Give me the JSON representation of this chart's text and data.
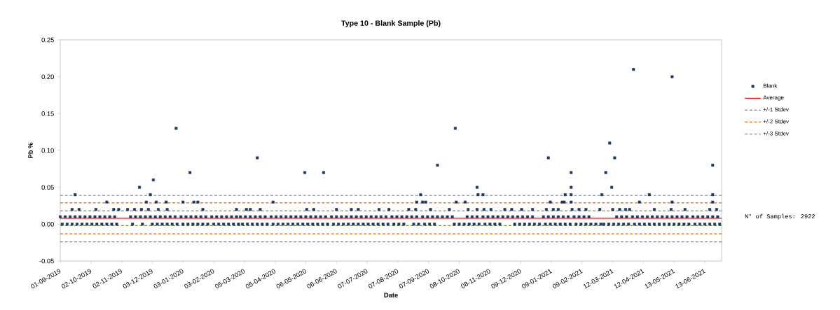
{
  "chart_data": {
    "type": "scatter",
    "title": "Type 10 - Blank Sample (Pb)",
    "xlabel": "Date",
    "ylabel": "Pb %",
    "xlim": [
      "2019-09-01",
      "2021-06-30"
    ],
    "ylim": [
      -0.05,
      0.25
    ],
    "xticks": [
      {
        "value": "2019-09-01",
        "label": "01-09-2019"
      },
      {
        "value": "2019-10-02",
        "label": "02-10-2019"
      },
      {
        "value": "2019-11-02",
        "label": "02-11-2019"
      },
      {
        "value": "2019-12-03",
        "label": "03-12-2019"
      },
      {
        "value": "2020-01-03",
        "label": "03-01-2020"
      },
      {
        "value": "2020-02-03",
        "label": "03-02-2020"
      },
      {
        "value": "2020-03-05",
        "label": "05-03-2020"
      },
      {
        "value": "2020-04-05",
        "label": "05-04-2020"
      },
      {
        "value": "2020-05-06",
        "label": "06-05-2020"
      },
      {
        "value": "2020-06-06",
        "label": "06-06-2020"
      },
      {
        "value": "2020-07-07",
        "label": "07-07-2020"
      },
      {
        "value": "2020-08-07",
        "label": "07-08-2020"
      },
      {
        "value": "2020-09-07",
        "label": "07-09-2020"
      },
      {
        "value": "2020-10-08",
        "label": "08-10-2020"
      },
      {
        "value": "2020-11-08",
        "label": "08-11-2020"
      },
      {
        "value": "2020-12-09",
        "label": "09-12-2020"
      },
      {
        "value": "2021-01-09",
        "label": "09-01-2021"
      },
      {
        "value": "2021-02-09",
        "label": "09-02-2021"
      },
      {
        "value": "2021-03-12",
        "label": "12-03-2021"
      },
      {
        "value": "2021-04-12",
        "label": "12-04-2021"
      },
      {
        "value": "2021-05-13",
        "label": "13-05-2021"
      },
      {
        "value": "2021-06-13",
        "label": "13-06-2021"
      }
    ],
    "yticks": [
      -0.05,
      {
        "value": 0,
        "label": "0.00"
      },
      0.05,
      {
        "value": 0.1,
        "label": "0.10"
      },
      0.15,
      {
        "value": 0.2,
        "label": "0.20"
      },
      0.25
    ],
    "marker": "square",
    "legend": "right",
    "annotations": [
      "N° of Samples: 2922"
    ],
    "series": [
      {
        "name": "Blank",
        "color": "#1f3864",
        "x": [
          "2019-09-01",
          "2019-09-03",
          "2019-09-06",
          "2019-09-08",
          "2019-09-11",
          "2019-09-13",
          "2019-09-16",
          "2019-09-18",
          "2019-09-21",
          "2019-09-23",
          "2019-09-26",
          "2019-09-28",
          "2019-10-01",
          "2019-10-03",
          "2019-10-06",
          "2019-10-08",
          "2019-10-11",
          "2019-10-13",
          "2019-10-16",
          "2019-10-18",
          "2019-10-21",
          "2019-10-23",
          "2019-10-26",
          "2019-10-28",
          "2019-11-11",
          "2019-11-13",
          "2019-11-16",
          "2019-11-21",
          "2019-11-23",
          "2019-11-26",
          "2019-12-01",
          "2019-12-03",
          "2019-12-06",
          "2019-12-08",
          "2019-12-11",
          "2019-12-13",
          "2019-12-16",
          "2019-12-18",
          "2019-12-21",
          "2019-12-23",
          "2019-12-26",
          "2019-12-28",
          "2020-01-01",
          "2020-01-03",
          "2020-01-06",
          "2020-01-08",
          "2020-01-11",
          "2020-01-13",
          "2020-01-16",
          "2020-01-18",
          "2020-01-21",
          "2020-01-23",
          "2020-01-26",
          "2020-01-28",
          "2020-02-01",
          "2020-02-03",
          "2020-02-06",
          "2020-02-08",
          "2020-02-11",
          "2020-02-13",
          "2020-02-16",
          "2020-02-18",
          "2020-02-21",
          "2020-02-23",
          "2020-02-26",
          "2020-02-28",
          "2020-03-01",
          "2020-03-03",
          "2020-03-06",
          "2020-03-08",
          "2020-03-11",
          "2020-03-13",
          "2020-03-16",
          "2020-03-18",
          "2020-03-21",
          "2020-03-23",
          "2020-03-26",
          "2020-03-28",
          "2020-04-01",
          "2020-04-03",
          "2020-04-06",
          "2020-04-08",
          "2020-04-11",
          "2020-04-13",
          "2020-04-16",
          "2020-04-18",
          "2020-04-21",
          "2020-04-23",
          "2020-04-26",
          "2020-04-28",
          "2020-05-01",
          "2020-05-03",
          "2020-05-06",
          "2020-05-08",
          "2020-05-11",
          "2020-05-13",
          "2020-05-16",
          "2020-05-18",
          "2020-05-21",
          "2020-05-23",
          "2020-05-26",
          "2020-05-28",
          "2020-06-01",
          "2020-06-03",
          "2020-06-06",
          "2020-06-08",
          "2020-06-11",
          "2020-06-13",
          "2020-06-16",
          "2020-06-18",
          "2020-06-21",
          "2020-06-23",
          "2020-06-26",
          "2020-06-28",
          "2020-07-01",
          "2020-07-03",
          "2020-07-06",
          "2020-07-08",
          "2020-07-11",
          "2020-07-13",
          "2020-07-16",
          "2020-07-18",
          "2020-07-21",
          "2020-07-23",
          "2020-07-26",
          "2020-07-28",
          "2020-08-01",
          "2020-08-03",
          "2020-08-06",
          "2020-08-08",
          "2020-08-11",
          "2020-08-13",
          "2020-08-16",
          "2020-08-21",
          "2020-08-23",
          "2020-08-26",
          "2020-08-28",
          "2020-09-01",
          "2020-09-03",
          "2020-09-06",
          "2020-09-08",
          "2020-09-11",
          "2020-09-13",
          "2020-09-16",
          "2020-09-21",
          "2020-09-26",
          "2020-10-01",
          "2020-10-03",
          "2020-10-08",
          "2020-10-13",
          "2020-10-16",
          "2020-10-18",
          "2020-10-21",
          "2020-10-23",
          "2020-10-26",
          "2020-10-28",
          "2020-11-01",
          "2020-11-03",
          "2020-11-06",
          "2020-11-08",
          "2020-11-11",
          "2020-11-13",
          "2020-11-16",
          "2020-11-18",
          "2020-11-21",
          "2020-11-26",
          "2020-12-01",
          "2020-12-03",
          "2020-12-06",
          "2020-12-08",
          "2020-12-11",
          "2020-12-13",
          "2020-12-16",
          "2020-12-18",
          "2020-12-21",
          "2020-12-23",
          "2020-12-28",
          "2021-01-01",
          "2021-01-03",
          "2021-01-06",
          "2021-01-08",
          "2021-01-11",
          "2021-01-13",
          "2021-01-16",
          "2021-01-18",
          "2021-01-21",
          "2021-01-23",
          "2021-01-26",
          "2021-01-28",
          "2021-02-01",
          "2021-02-03",
          "2021-02-06",
          "2021-02-08",
          "2021-02-11",
          "2021-02-13",
          "2021-02-16",
          "2021-02-18",
          "2021-02-23",
          "2021-02-28",
          "2021-03-03",
          "2021-03-08",
          "2021-03-13",
          "2021-03-16",
          "2021-03-18",
          "2021-03-21",
          "2021-03-23",
          "2021-03-26",
          "2021-03-28",
          "2021-04-01",
          "2021-04-03",
          "2021-04-06",
          "2021-04-08",
          "2021-04-11",
          "2021-04-13",
          "2021-04-16",
          "2021-04-18",
          "2021-04-21",
          "2021-04-23",
          "2021-04-26",
          "2021-04-28",
          "2021-05-01",
          "2021-05-03",
          "2021-05-06",
          "2021-05-08",
          "2021-05-11",
          "2021-05-13",
          "2021-05-16",
          "2021-05-18",
          "2021-05-21",
          "2021-05-23",
          "2021-05-26",
          "2021-05-28",
          "2021-06-01",
          "2021-06-03",
          "2021-06-06",
          "2021-06-08",
          "2021-06-11",
          "2021-06-13",
          "2021-06-16",
          "2021-06-18",
          "2021-06-21",
          "2021-06-23",
          "2021-06-26",
          "2021-06-28",
          "2019-09-13",
          "2019-09-16",
          "2019-09-20",
          "2019-10-07",
          "2019-10-18",
          "2019-10-25",
          "2019-10-30",
          "2019-11-08",
          "2019-11-15",
          "2019-11-20",
          "2019-11-22",
          "2019-11-27",
          "2019-11-29",
          "2019-12-01",
          "2019-12-04",
          "2019-12-07",
          "2019-12-09",
          "2019-12-17",
          "2019-12-18",
          "2019-12-27",
          "2020-01-03",
          "2020-01-10",
          "2020-01-14",
          "2020-01-18",
          "2020-01-23",
          "2020-02-26",
          "2020-03-07",
          "2020-03-11",
          "2020-03-18",
          "2020-03-21",
          "2020-04-03",
          "2020-05-05",
          "2020-05-07",
          "2020-05-14",
          "2020-05-24",
          "2020-06-06",
          "2020-06-21",
          "2020-06-28",
          "2020-07-19",
          "2020-07-29",
          "2020-08-18",
          "2020-08-25",
          "2020-08-26",
          "2020-08-30",
          "2020-09-01",
          "2020-09-04",
          "2020-09-09",
          "2020-09-16",
          "2020-09-28",
          "2020-10-04",
          "2020-10-05",
          "2020-10-14",
          "2020-10-17",
          "2020-10-26",
          "2020-10-27",
          "2020-10-26",
          "2020-11-01",
          "2020-11-02",
          "2020-11-09",
          "2020-11-23",
          "2020-11-30",
          "2020-12-10",
          "2020-12-21",
          "2021-01-04",
          "2021-01-06",
          "2021-01-08",
          "2021-01-11",
          "2021-01-16",
          "2021-01-20",
          "2021-01-22",
          "2021-01-23",
          "2021-01-29",
          "2021-01-29",
          "2021-01-29",
          "2021-01-29",
          "2021-01-30",
          "2021-02-06",
          "2021-02-13",
          "2021-02-27",
          "2021-03-01",
          "2021-03-05",
          "2021-03-09",
          "2021-03-11",
          "2021-03-12",
          "2021-03-14",
          "2021-03-19",
          "2021-03-25",
          "2021-03-29",
          "2021-04-02",
          "2021-04-08",
          "2021-04-18",
          "2021-04-23",
          "2021-05-10",
          "2021-05-11",
          "2021-05-11",
          "2021-05-24",
          "2021-06-18",
          "2021-06-21",
          "2021-06-21",
          "2021-06-21",
          "2021-06-25"
        ],
        "values": [
          0.01,
          0,
          0.01,
          0,
          0.01,
          0,
          0.01,
          0,
          0.01,
          0,
          0.01,
          0,
          0.01,
          0,
          0.01,
          0,
          0.01,
          0,
          0.01,
          0,
          0.01,
          0,
          0.01,
          0,
          0.01,
          0,
          0.01,
          0.01,
          0,
          0.01,
          0.01,
          0,
          0.01,
          0,
          0.01,
          0,
          0.01,
          0,
          0.01,
          0,
          0.01,
          0,
          0.01,
          0,
          0.01,
          0,
          0.01,
          0,
          0.01,
          0,
          0.01,
          0,
          0.01,
          0,
          0.01,
          0,
          0.01,
          0,
          0.01,
          0,
          0.01,
          0,
          0.01,
          0,
          0.01,
          0,
          0.01,
          0,
          0.01,
          0,
          0.01,
          0,
          0.01,
          0,
          0.01,
          0,
          0.01,
          0,
          0.01,
          0,
          0.01,
          0,
          0.01,
          0,
          0.01,
          0,
          0.01,
          0,
          0.01,
          0,
          0.01,
          0,
          0.01,
          0,
          0.01,
          0,
          0.01,
          0,
          0.01,
          0,
          0.01,
          0,
          0.01,
          0,
          0.01,
          0,
          0.01,
          0,
          0.01,
          0,
          0.01,
          0,
          0.01,
          0,
          0.01,
          0,
          0.01,
          0,
          0.01,
          0,
          0.01,
          0,
          0.01,
          0,
          0.01,
          0,
          0.01,
          0,
          0.01,
          0,
          0.01,
          0,
          0.01,
          0.01,
          0,
          0.01,
          0,
          0.01,
          0,
          0.01,
          0,
          0.01,
          0,
          0.01,
          0.01,
          0.01,
          0.01,
          0,
          0,
          0,
          0.01,
          0,
          0.01,
          0,
          0.01,
          0,
          0.01,
          0,
          0.01,
          0,
          0.01,
          0,
          0.01,
          0,
          0.01,
          0.01,
          0.01,
          0,
          0.01,
          0,
          0.01,
          0,
          0.01,
          0,
          0.01,
          0,
          0,
          0.01,
          0,
          0.01,
          0,
          0.01,
          0,
          0.01,
          0,
          0.01,
          0,
          0.01,
          0,
          0.01,
          0,
          0.01,
          0,
          0.01,
          0,
          0.01,
          0,
          0,
          0,
          0,
          0,
          0,
          0.01,
          0,
          0.01,
          0,
          0.01,
          0,
          0.01,
          0,
          0.01,
          0,
          0.01,
          0,
          0.01,
          0,
          0.01,
          0,
          0.01,
          0,
          0.01,
          0,
          0.01,
          0,
          0.01,
          0,
          0.01,
          0,
          0.01,
          0,
          0.01,
          0,
          0.01,
          0,
          0.01,
          0,
          0.01,
          0,
          0.01,
          0,
          0.01,
          0,
          0.01,
          0,
          0.02,
          0.04,
          0.02,
          0.02,
          0.03,
          0.02,
          0.02,
          0.02,
          0.02,
          0.05,
          0.02,
          0.03,
          0.02,
          0.04,
          0.06,
          0.03,
          0.02,
          0.03,
          0.02,
          0.13,
          0.03,
          0.07,
          0.03,
          0.03,
          0.02,
          0.02,
          0.02,
          0.02,
          0.09,
          0.02,
          0.03,
          0.07,
          0.02,
          0.02,
          0.07,
          0.02,
          0.02,
          0.02,
          0.02,
          0.02,
          0.02,
          0.02,
          0.03,
          0.04,
          0.03,
          0.03,
          0.02,
          0.08,
          0.02,
          0.13,
          0.03,
          0.03,
          0.02,
          0.05,
          0.04,
          0.02,
          0.04,
          0.02,
          0.02,
          0.02,
          0.02,
          0.02,
          0.02,
          0.02,
          0.09,
          0.03,
          0.02,
          0.02,
          0.03,
          0.03,
          0.04,
          0.07,
          0.05,
          0.04,
          0.03,
          0.02,
          0.02,
          0.02,
          0.02,
          0.04,
          0.07,
          0.11,
          0.05,
          0.02,
          0.09,
          0.02,
          0.02,
          0.02,
          0.21,
          0.03,
          0.04,
          0.02,
          0.02,
          0.2,
          0.03,
          0.02,
          0.02,
          0.08,
          0.04,
          0.03,
          0.02
        ]
      }
    ],
    "ref_lines": [
      {
        "axis": "y",
        "value": 0.008,
        "label": "Average",
        "color": "#ff0000",
        "line_style": "solid"
      },
      {
        "axis": "y",
        "value": 0.018,
        "label": "+/-1 Stdev",
        "color": "#77933c",
        "line_style": "dashed"
      },
      {
        "axis": "y",
        "value": -0.002,
        "color": "#77933c",
        "line_style": "dashed"
      },
      {
        "axis": "y",
        "value": 0.029,
        "label": "+/-2 Stdev",
        "color": "#e46c0a",
        "line_style": "dashed"
      },
      {
        "axis": "y",
        "value": -0.013,
        "color": "#e46c0a",
        "line_style": "dashed"
      },
      {
        "axis": "y",
        "value": 0.039,
        "label": "+/-3 Stdev",
        "color": "#558ed5",
        "line_style": "dashed"
      },
      {
        "axis": "y",
        "value": -0.024,
        "color": "#558ed5",
        "line_style": "dashed"
      }
    ]
  }
}
